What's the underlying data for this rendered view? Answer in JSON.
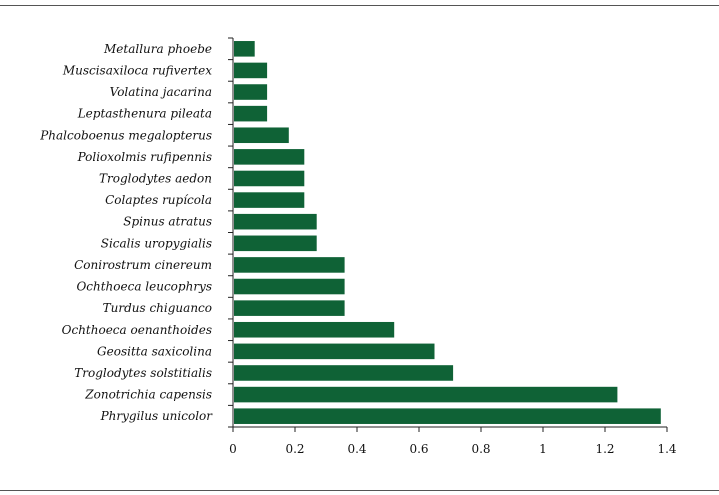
{
  "chart_data": {
    "type": "bar",
    "orientation": "horizontal",
    "title": "",
    "xlabel": "",
    "ylabel": "",
    "categories": [
      "Metallura phoebe",
      "Muscisaxiloca rufivertex",
      "Volatina jacarina",
      "Leptasthenura pileata",
      "Phalcoboenus megalopterus",
      "Polioxolmis rufipennis",
      "Troglodytes aedon",
      "Colaptes rupícola",
      "Spinus atratus",
      "Sicalis uropygialis",
      "Conirostrum cinereum",
      "Ochthoeca leucophrys",
      "Turdus chiguanco",
      "Ochthoeca oenanthoides",
      "Geositta saxicolina",
      "Troglodytes solstitialis",
      "Zonotrichia capensis",
      "Phrygilus unicolor"
    ],
    "values": [
      0.07,
      0.11,
      0.11,
      0.11,
      0.18,
      0.23,
      0.23,
      0.23,
      0.27,
      0.27,
      0.36,
      0.36,
      0.36,
      0.52,
      0.65,
      0.71,
      1.24,
      1.38
    ],
    "xlim": [
      0,
      1.4
    ],
    "xticks": [
      "0",
      "0.2",
      "0.4",
      "0.6",
      "0.8",
      "1",
      "1.2",
      "1.4"
    ],
    "xtick_values": [
      0,
      0.2,
      0.4,
      0.6,
      0.8,
      1.0,
      1.2,
      1.4
    ],
    "bar_color": "#0f6236",
    "grid": false,
    "legend": "none"
  }
}
